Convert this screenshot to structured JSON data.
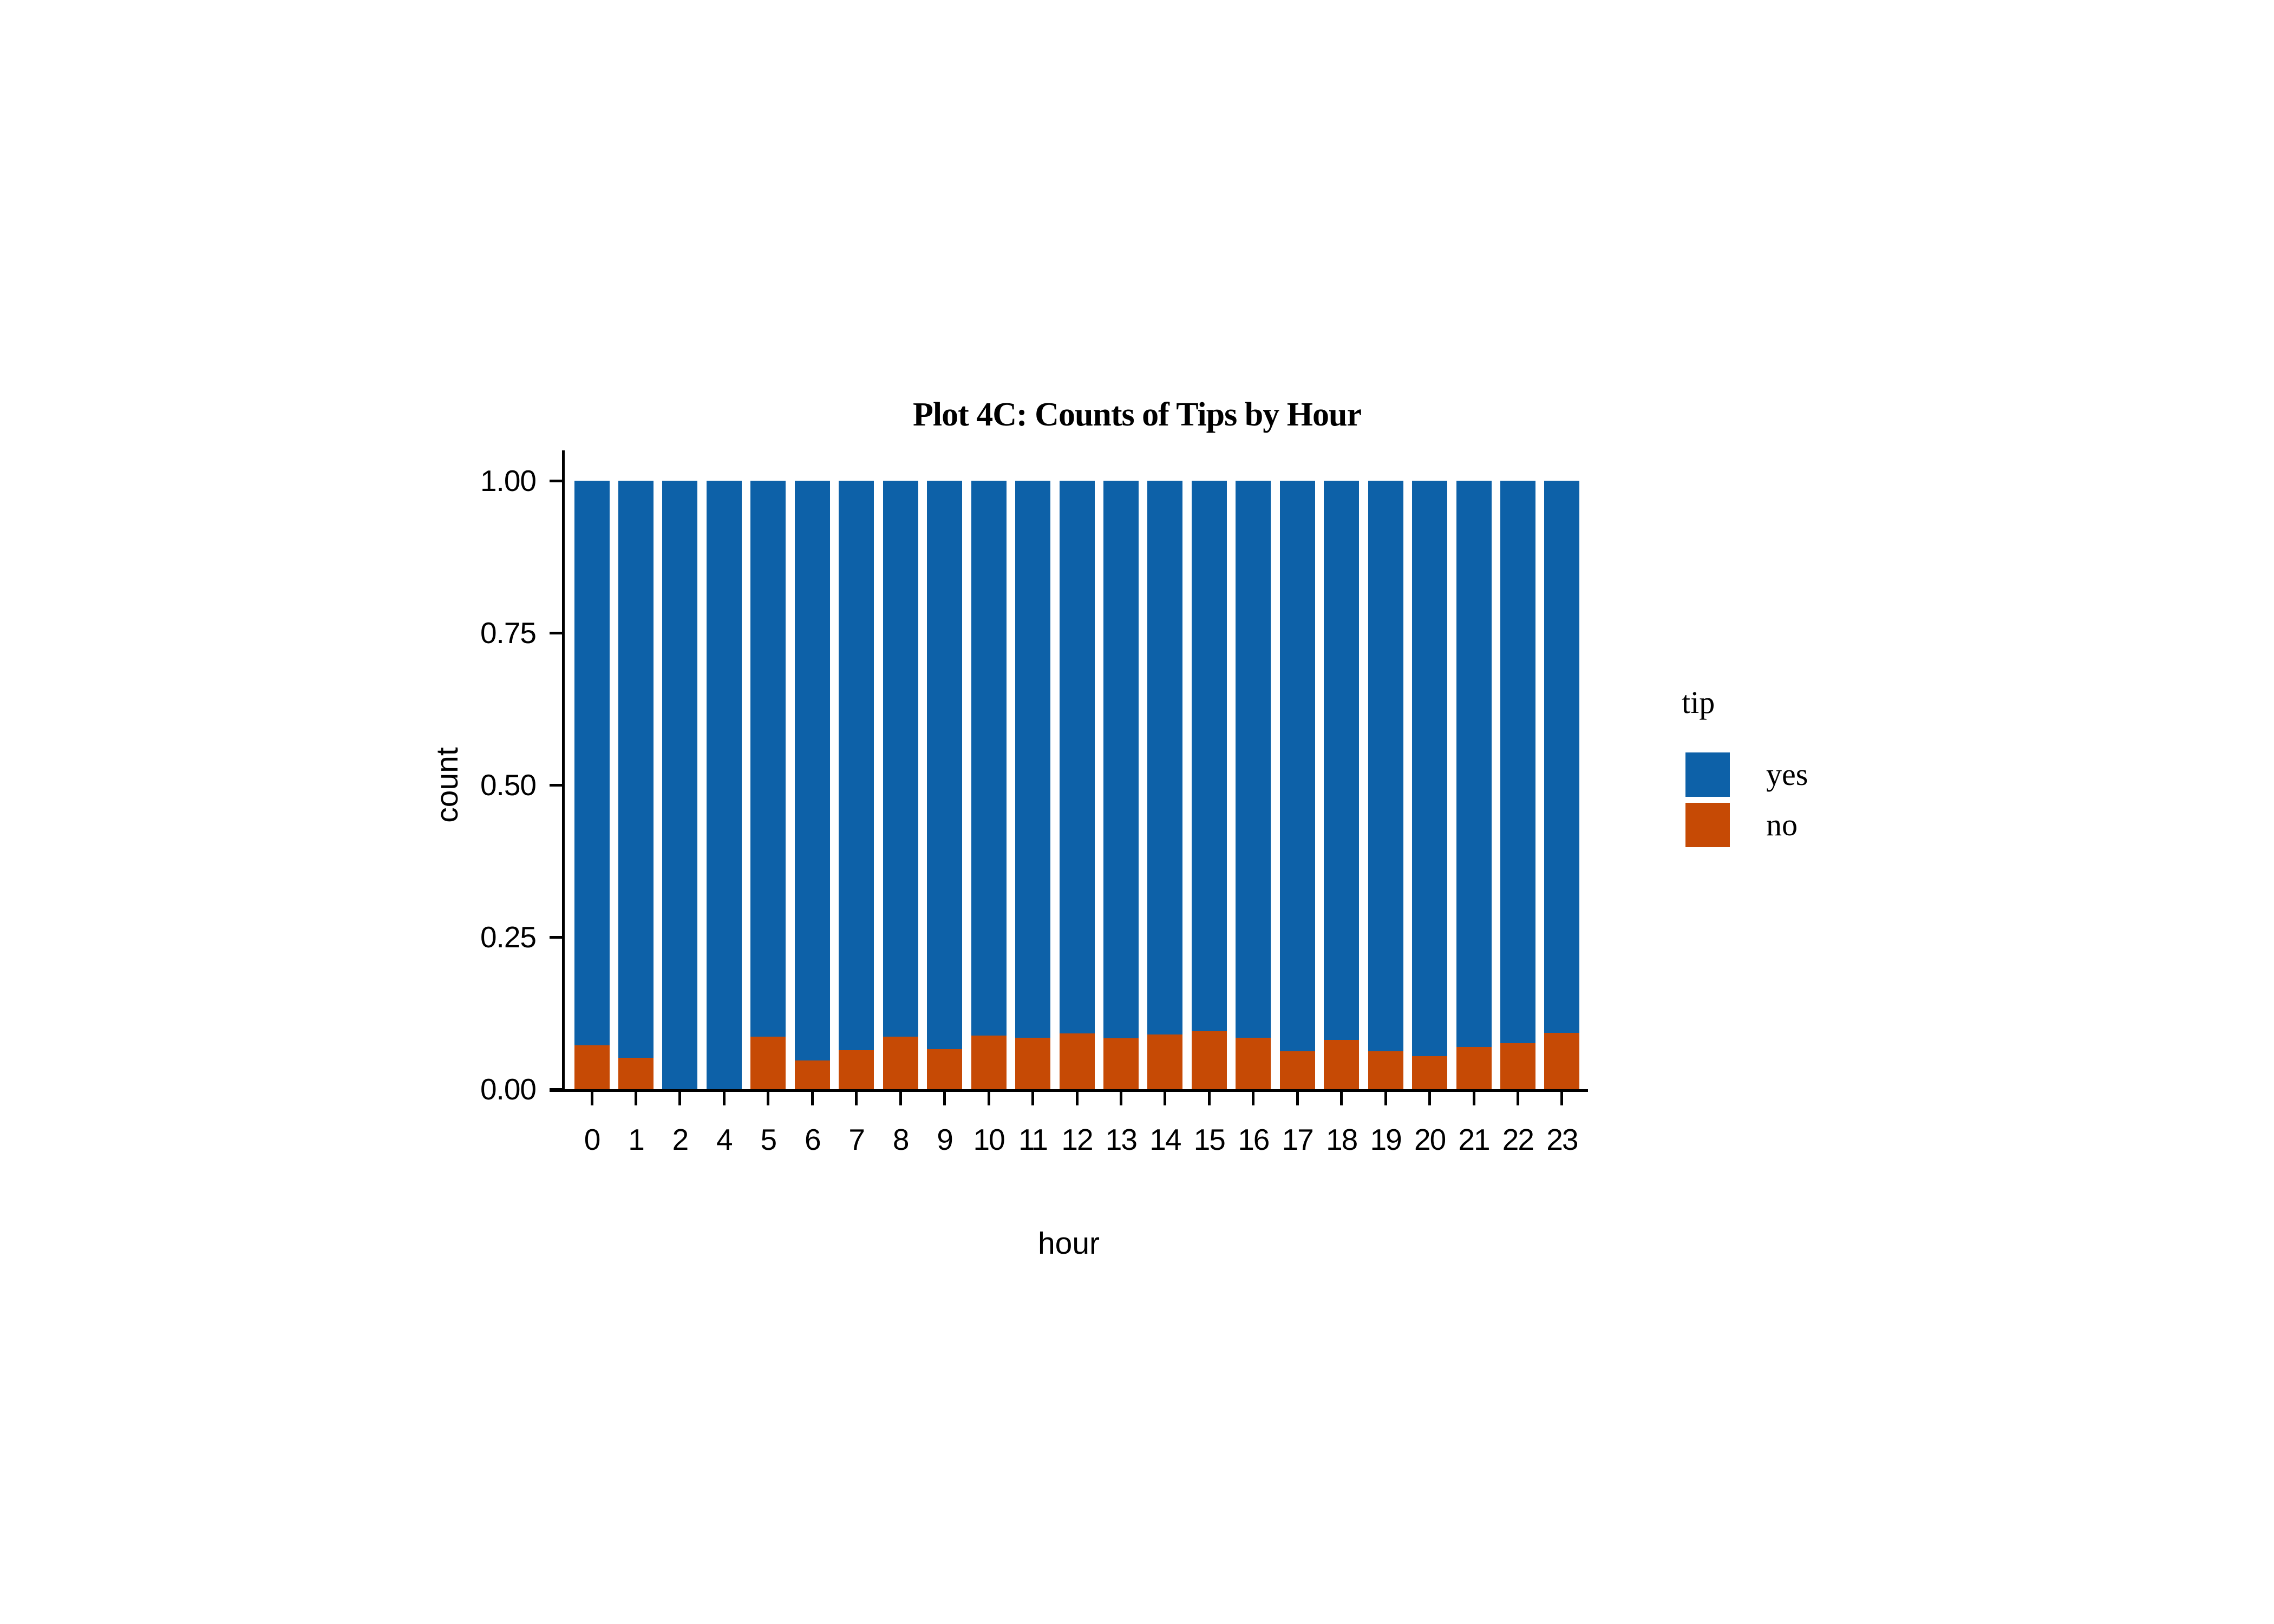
{
  "title": "Plot 4C: Counts of Tips by Hour",
  "axes": {
    "x_title": "hour",
    "y_title": "count",
    "y_tick_labels": [
      "0.00",
      "0.25",
      "0.50",
      "0.75",
      "1.00"
    ]
  },
  "legend": {
    "title": "tip",
    "entries": [
      {
        "label": "yes",
        "color": "#0d61a8"
      },
      {
        "label": "no",
        "color": "#c64a05"
      }
    ]
  },
  "chart_data": {
    "type": "bar",
    "stacked": true,
    "normalized": true,
    "title": "Plot 4C: Counts of Tips by Hour",
    "xlabel": "hour",
    "ylabel": "count",
    "categories": [
      "0",
      "1",
      "2",
      "4",
      "5",
      "6",
      "7",
      "8",
      "9",
      "10",
      "11",
      "12",
      "13",
      "14",
      "15",
      "16",
      "17",
      "18",
      "19",
      "20",
      "21",
      "22",
      "23"
    ],
    "series": [
      {
        "name": "no",
        "color": "#c64a05",
        "stack_order": "bottom",
        "values": [
          0.072,
          0.052,
          0.0,
          0.0,
          0.086,
          0.047,
          0.064,
          0.086,
          0.066,
          0.088,
          0.085,
          0.092,
          0.084,
          0.09,
          0.095,
          0.085,
          0.062,
          0.081,
          0.062,
          0.054,
          0.069,
          0.076,
          0.093
        ]
      },
      {
        "name": "yes",
        "color": "#0d61a8",
        "stack_order": "top",
        "values": [
          0.928,
          0.948,
          1.0,
          1.0,
          0.914,
          0.953,
          0.936,
          0.914,
          0.934,
          0.912,
          0.915,
          0.908,
          0.916,
          0.91,
          0.905,
          0.915,
          0.938,
          0.919,
          0.938,
          0.946,
          0.931,
          0.924,
          0.907
        ]
      }
    ],
    "yticks": [
      {
        "label": "0.00",
        "value": 0.0
      },
      {
        "label": "0.25",
        "value": 0.25
      },
      {
        "label": "0.50",
        "value": 0.5
      },
      {
        "label": "0.75",
        "value": 0.75
      },
      {
        "label": "1.00",
        "value": 1.0
      }
    ],
    "ylim": [
      0,
      1.05
    ],
    "grid": false,
    "legend_position": "right"
  }
}
